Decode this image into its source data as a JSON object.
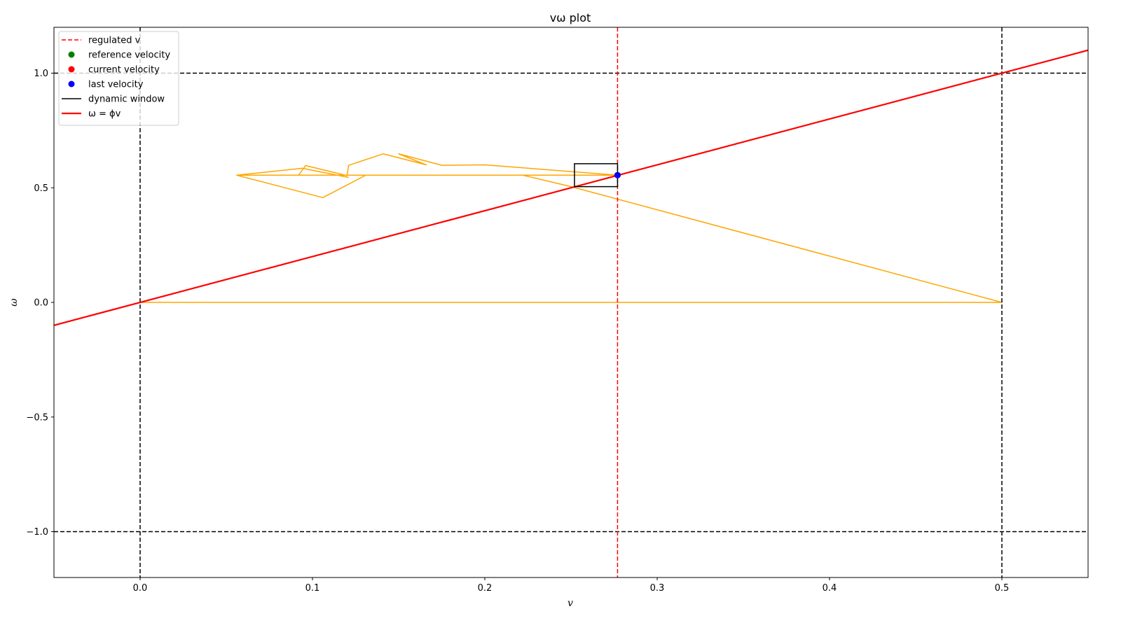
{
  "chart_data": {
    "type": "line",
    "title": "vω plot",
    "xlabel": "v",
    "ylabel": "ω",
    "xlim": [
      -0.05,
      0.55
    ],
    "ylim": [
      -1.2,
      1.2
    ],
    "xticks": [
      0.0,
      0.1,
      0.2,
      0.3,
      0.4,
      0.5
    ],
    "xtick_labels": [
      "0.0",
      "0.1",
      "0.2",
      "0.3",
      "0.4",
      "0.5"
    ],
    "yticks": [
      -1.0,
      -0.5,
      0.0,
      0.5,
      1.0
    ],
    "ytick_labels": [
      "−1.0",
      "−0.5",
      "0.0",
      "0.5",
      "1.0"
    ],
    "grid": false,
    "legend_position": "upper-left",
    "legend": [
      {
        "label": "regulated v",
        "kind": "dashed-line",
        "color": "#ff0000"
      },
      {
        "label": "reference velocity",
        "kind": "dot",
        "color": "#008000"
      },
      {
        "label": "current velocity",
        "kind": "dot",
        "color": "#ff0000"
      },
      {
        "label": "last velocity",
        "kind": "dot",
        "color": "#0000ff"
      },
      {
        "label": "dynamic window",
        "kind": "line",
        "color": "#000000"
      },
      {
        "label": "ω = ϕv",
        "kind": "line",
        "color": "#ff0000"
      }
    ],
    "limits": {
      "v_min": 0.0,
      "v_max": 0.5,
      "omega_min": -1.0,
      "omega_max": 1.0,
      "color": "#000000"
    },
    "regulated_v": {
      "value": 0.277,
      "color": "#ff0000"
    },
    "phi_line": {
      "slope": 2.0,
      "color": "#ff0000"
    },
    "dynamic_window": {
      "v": [
        0.252,
        0.277
      ],
      "omega": [
        0.505,
        0.605
      ],
      "color": "#000000"
    },
    "last_velocity": {
      "v": 0.277,
      "omega": 0.555,
      "color": "#0000ff"
    },
    "current_velocity": {
      "v": 0.277,
      "omega": 0.555,
      "color": "#ff0000"
    },
    "reference_velocity": {
      "v": 0.277,
      "omega": 0.555,
      "color": "#008000"
    },
    "trajectory": {
      "color": "#ffa500",
      "points": [
        [
          0.0,
          0.0
        ],
        [
          0.5,
          0.0
        ],
        [
          0.25,
          0.505
        ],
        [
          0.222,
          0.555
        ],
        [
          0.056,
          0.555
        ],
        [
          0.106,
          0.457
        ],
        [
          0.131,
          0.555
        ],
        [
          0.277,
          0.555
        ],
        [
          0.2,
          0.6
        ],
        [
          0.175,
          0.598
        ],
        [
          0.15,
          0.648
        ],
        [
          0.166,
          0.6
        ],
        [
          0.141,
          0.648
        ],
        [
          0.121,
          0.598
        ],
        [
          0.12,
          0.553
        ],
        [
          0.096,
          0.597
        ],
        [
          0.092,
          0.555
        ],
        [
          0.056,
          0.555
        ],
        [
          0.094,
          0.585
        ],
        [
          0.121,
          0.545
        ]
      ]
    }
  }
}
